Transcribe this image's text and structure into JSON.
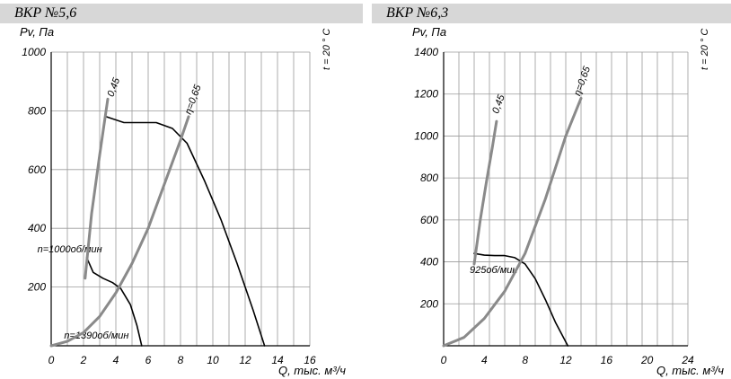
{
  "chart_data": [
    {
      "type": "line",
      "title": "ВКР №5,6",
      "ylabel": "Pv, Па",
      "xlabel": "Q, тыс. м³/ч",
      "temp_label": "t = 20 ° С",
      "xlim": [
        0,
        16
      ],
      "ylim": [
        0,
        1000
      ],
      "x_ticks": [
        0,
        2,
        4,
        6,
        8,
        10,
        12,
        14,
        16
      ],
      "y_ticks": [
        200,
        400,
        600,
        800,
        1000
      ],
      "grid": true,
      "series": [
        {
          "name": "n=1390об/мин",
          "color": "#000000",
          "x": [
            3.4,
            4.5,
            5.5,
            6.5,
            7.5,
            8.4,
            9.5,
            10.5,
            11.5,
            12.5,
            13.2
          ],
          "y": [
            780,
            760,
            760,
            760,
            740,
            690,
            560,
            430,
            280,
            120,
            0
          ]
        },
        {
          "name": "n=1000об/мин",
          "color": "#000000",
          "x": [
            2.2,
            2.6,
            3.2,
            3.8,
            4.3,
            4.9,
            5.3,
            5.6
          ],
          "y": [
            300,
            250,
            230,
            215,
            195,
            140,
            70,
            0
          ]
        },
        {
          "name": "η=0,65",
          "color": "#8a8a8a",
          "x": [
            0,
            1,
            2,
            3,
            4,
            5,
            6,
            7,
            8,
            8.5
          ],
          "y": [
            0,
            15,
            45,
            100,
            180,
            280,
            400,
            550,
            700,
            780
          ]
        },
        {
          "name": "0,45",
          "color": "#8a8a8a",
          "x": [
            2.1,
            2.5,
            3,
            3.5
          ],
          "y": [
            230,
            450,
            650,
            840
          ]
        }
      ]
    },
    {
      "type": "line",
      "title": "ВКР №6,3",
      "ylabel": "Pv, Па",
      "xlabel": "Q, тыс. м³/ч",
      "temp_label": "t = 20 ° С",
      "xlim": [
        0,
        24
      ],
      "ylim": [
        0,
        1400
      ],
      "x_ticks": [
        0,
        4,
        8,
        12,
        16,
        20,
        24
      ],
      "y_ticks": [
        200,
        400,
        600,
        800,
        1000,
        1200,
        1400
      ],
      "grid": true,
      "series": [
        {
          "name": "925об/мин",
          "color": "#000000",
          "x": [
            3,
            4,
            5,
            6,
            7,
            8,
            9,
            10,
            11,
            12.2
          ],
          "y": [
            440,
            432,
            430,
            430,
            420,
            390,
            320,
            220,
            110,
            0
          ]
        },
        {
          "name": "η=0,65",
          "color": "#8a8a8a",
          "x": [
            0,
            2,
            4,
            6,
            8,
            10,
            12,
            13.5
          ],
          "y": [
            0,
            40,
            130,
            260,
            440,
            700,
            1000,
            1180
          ]
        },
        {
          "name": "0,45",
          "color": "#8a8a8a",
          "x": [
            3,
            3.6,
            4.2,
            4.8,
            5.2
          ],
          "y": [
            390,
            600,
            780,
            950,
            1070
          ]
        }
      ]
    }
  ]
}
